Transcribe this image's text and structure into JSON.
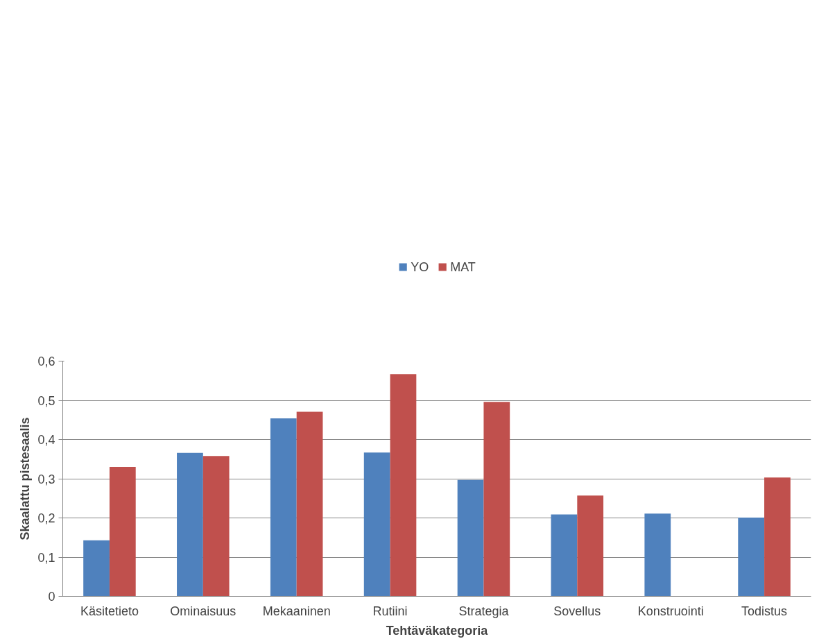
{
  "chart_data": {
    "type": "bar",
    "xlabel": "Tehtäväkategoria",
    "ylabel": "Skaalattu pistesaalis",
    "categories": [
      "Käsitetieto",
      "Ominaisuus",
      "Mekaaninen",
      "Rutiini",
      "Strategia",
      "Sovellus",
      "Konstruointi",
      "Todistus"
    ],
    "series": [
      {
        "name": "YO",
        "color": "#4f81bd",
        "values": [
          0.143,
          0.366,
          0.454,
          0.367,
          0.297,
          0.209,
          0.211,
          0.201
        ]
      },
      {
        "name": "MAT",
        "color": "#c0504d",
        "values": [
          0.33,
          0.358,
          0.471,
          0.567,
          0.496,
          0.257,
          null,
          0.303
        ]
      }
    ],
    "ylim": [
      0,
      0.6
    ],
    "yticks": [
      0,
      {
        "value": 0.1,
        "label": "0,1"
      },
      {
        "value": 0.2,
        "label": "0,2"
      },
      {
        "value": 0.3,
        "label": "0,3"
      },
      {
        "value": 0.4,
        "label": "0,4"
      },
      {
        "value": 0.5,
        "label": "0,5"
      },
      {
        "value": 0.6,
        "label": "0,6"
      }
    ],
    "grid": "y",
    "legend": "top"
  }
}
